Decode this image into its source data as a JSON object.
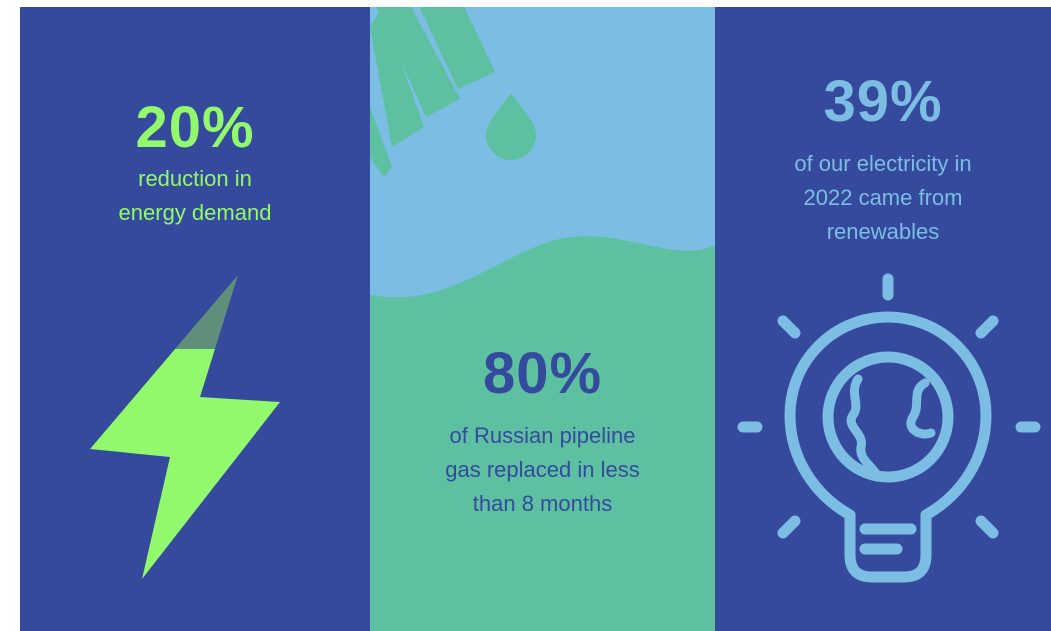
{
  "colors": {
    "navy": "#354a9c",
    "green_bright": "#92f96d",
    "teal": "#5cc0a1",
    "sky": "#7bbde3"
  },
  "stats": [
    {
      "value": "20%",
      "desc_lines": [
        "reduction in",
        "energy demand"
      ],
      "icon": "lightning-bolt-icon"
    },
    {
      "value": "80%",
      "desc_lines": [
        "of Russian pipeline",
        "gas replaced in less",
        "than 8 months"
      ],
      "icon": "gas-pipe-drop-icon"
    },
    {
      "value": "39%",
      "desc_lines": [
        "of our electricity in",
        "2022 came from",
        "renewables"
      ],
      "icon": "globe-lightbulb-icon"
    }
  ]
}
